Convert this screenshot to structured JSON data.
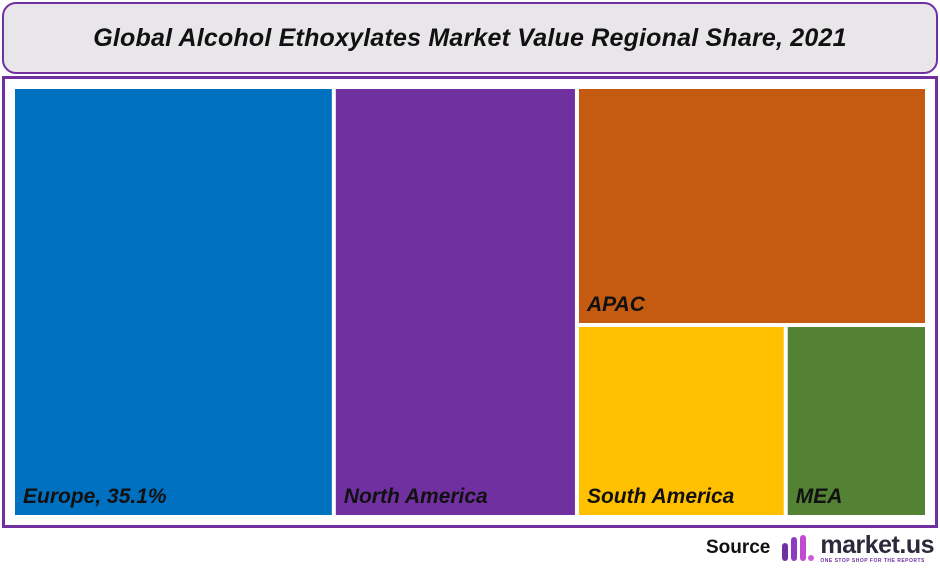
{
  "title": "Global Alcohol Ethoxylates Market Value Regional Share, 2021",
  "source": {
    "label": "Source",
    "logo_text": "market.us",
    "logo_tagline": "ONE STOP SHOP FOR THE REPORTS"
  },
  "chart_data": {
    "type": "treemap",
    "title": "Global Alcohol Ethoxylates Market Value Regional Share, 2021",
    "unit": "%",
    "items": [
      {
        "name": "Europe",
        "label": "Europe, 35.1%",
        "value": 35.1,
        "color": "#0070c0"
      },
      {
        "name": "North America",
        "label": "North America",
        "value": 26.6,
        "color": "#7030a0"
      },
      {
        "name": "APAC",
        "label": "APAC",
        "value": 21.2,
        "color": "#c55a11"
      },
      {
        "name": "South America",
        "label": "South America",
        "value": 10.2,
        "color": "#ffc000"
      },
      {
        "name": "MEA",
        "label": "MEA",
        "value": 6.9,
        "color": "#548235"
      }
    ]
  }
}
